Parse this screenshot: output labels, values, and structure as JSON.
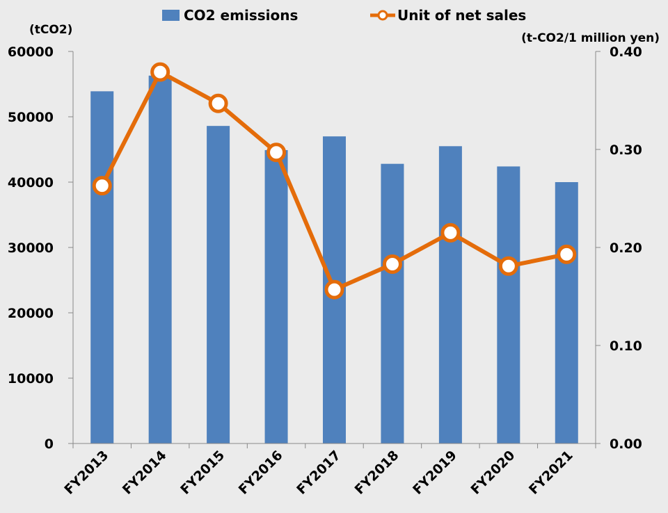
{
  "chart_data": {
    "type": "bar+line",
    "categories": [
      "FY2013",
      "FY2014",
      "FY2015",
      "FY2016",
      "FY2017",
      "FY2018",
      "FY2019",
      "FY2020",
      "FY2021"
    ],
    "series": [
      {
        "name": "CO2 emissions",
        "type": "bar",
        "axis": "left",
        "color": "#4f81bd",
        "values": [
          53900,
          56300,
          48600,
          44900,
          47000,
          42800,
          45500,
          42400,
          40000
        ]
      },
      {
        "name": "Unit of net sales",
        "type": "line",
        "axis": "right",
        "color": "#e46c0a",
        "values": [
          0.263,
          0.379,
          0.347,
          0.297,
          0.157,
          0.183,
          0.215,
          0.181,
          0.193
        ]
      }
    ],
    "y_left": {
      "label": "(tCO2)",
      "lim": [
        0,
        60000
      ],
      "ticks": [
        0,
        10000,
        20000,
        30000,
        40000,
        50000,
        60000
      ]
    },
    "y_right": {
      "label": "(t-CO2/1 million yen)",
      "lim": [
        0,
        0.4
      ],
      "ticks": [
        "0.00",
        "0.10",
        "0.20",
        "0.30",
        "0.40"
      ]
    },
    "legend_position": "top",
    "grid": false
  }
}
